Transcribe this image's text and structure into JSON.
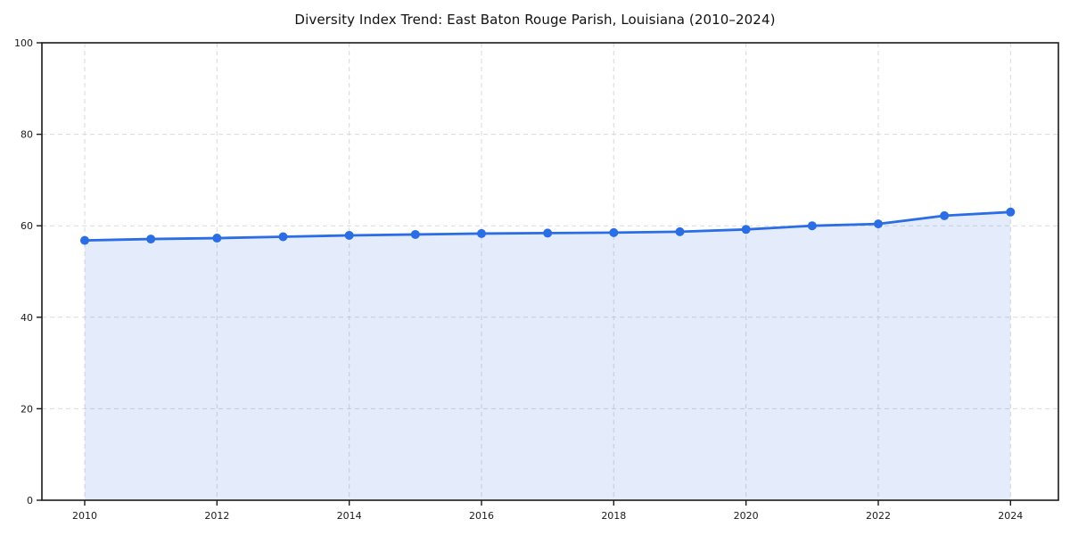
{
  "title": "Diversity Index Trend: East Baton Rouge Parish, Louisiana (2010–2024)",
  "chart_data": {
    "type": "area",
    "title": "Diversity Index Trend: East Baton Rouge Parish, Louisiana (2010–2024)",
    "x": [
      2010,
      2011,
      2012,
      2013,
      2014,
      2015,
      2016,
      2017,
      2018,
      2019,
      2020,
      2021,
      2022,
      2023,
      2024
    ],
    "values": [
      56.8,
      57.1,
      57.3,
      57.6,
      57.9,
      58.1,
      58.3,
      58.4,
      58.5,
      58.7,
      59.2,
      60.0,
      60.4,
      62.2,
      63.0
    ],
    "xlabel": "",
    "ylabel": "",
    "ylim": [
      0,
      100
    ],
    "y_ticks": [
      0,
      20,
      40,
      60,
      80,
      100
    ],
    "x_ticks": [
      2010,
      2012,
      2014,
      2016,
      2018,
      2020,
      2022,
      2024
    ],
    "grid": "dashed",
    "legend": "none",
    "marker": "circle",
    "colors": {
      "line": "#2b6de4",
      "marker": "#2b6de4",
      "fill_rgba": "rgba(43, 109, 228, 0.13)",
      "grid": "#d9d9d9",
      "spine": "#1a1a1a",
      "tick_text": "#1a1a1a",
      "title_text": "#111111",
      "background": "#ffffff"
    }
  }
}
